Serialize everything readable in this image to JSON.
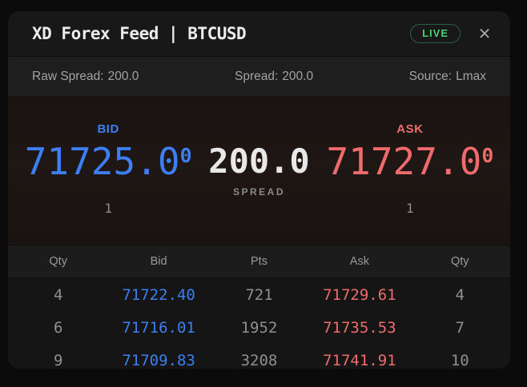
{
  "header": {
    "title": "XD Forex Feed | BTCUSD",
    "live_label": "LIVE",
    "close_glyph": "✕"
  },
  "info_bar": {
    "raw_spread": {
      "label": "Raw Spread:",
      "value": "200.0"
    },
    "spread": {
      "label": "Spread:",
      "value": "200.0"
    },
    "source": {
      "label": "Source:",
      "value": "Lmax"
    }
  },
  "quote": {
    "bid": {
      "label": "BID",
      "price_main": "71725.0",
      "price_sup": "0",
      "qty": "1"
    },
    "spread": {
      "value": "200.0",
      "label": "SPREAD"
    },
    "ask": {
      "label": "ASK",
      "price_main": "71727.0",
      "price_sup": "0",
      "qty": "1"
    }
  },
  "depth_table": {
    "columns": [
      "Qty",
      "Bid",
      "Pts",
      "Ask",
      "Qty"
    ],
    "rows": [
      {
        "bid_qty": "4",
        "bid": "71722.40",
        "pts": "721",
        "ask": "71729.61",
        "ask_qty": "4"
      },
      {
        "bid_qty": "6",
        "bid": "71716.01",
        "pts": "1952",
        "ask": "71735.53",
        "ask_qty": "7"
      },
      {
        "bid_qty": "9",
        "bid": "71709.83",
        "pts": "3208",
        "ask": "71741.91",
        "ask_qty": "10"
      }
    ]
  },
  "colors": {
    "bid_blue": "#3d7ef2",
    "ask_red": "#ef6b6b",
    "live_green": "#45d078",
    "spread_white": "#e8e8e8",
    "card_bg": "#151515",
    "page_bg": "#0b0b0b"
  }
}
